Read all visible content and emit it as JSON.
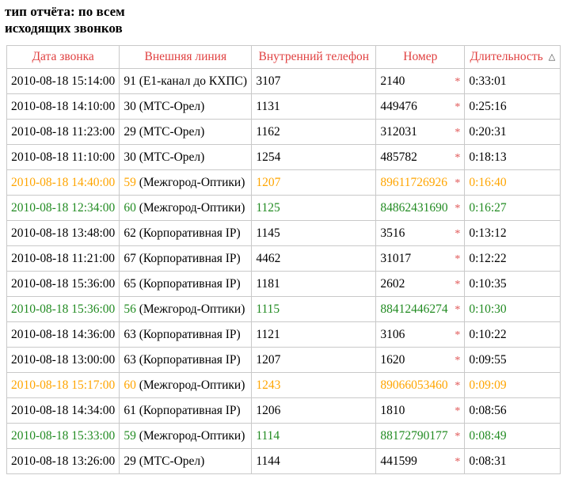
{
  "page": {
    "title": "тип отчёта: по всем\nисходящих звонков"
  },
  "colors": {
    "header_red": "#e04040",
    "star_red": "#e05555",
    "orange": "#ffa500",
    "green": "#228b22",
    "border": "#c9c9c9"
  },
  "table": {
    "columns": [
      {
        "label": "Дата звонка"
      },
      {
        "label": "Внешняя линия"
      },
      {
        "label": "Внутренний телефон"
      },
      {
        "label": "Номер"
      },
      {
        "label": "Длительность",
        "sort_indicator": "△"
      }
    ],
    "rows": [
      {
        "color": "black",
        "date": "2010-08-18 15:14:00",
        "line_no": "91",
        "line_name": "(E1-канал до КХПС)",
        "internal": "3107",
        "number": "2140",
        "flag": "*",
        "duration": "0:33:01"
      },
      {
        "color": "black",
        "date": "2010-08-18 14:10:00",
        "line_no": "30",
        "line_name": "(МТС-Орел)",
        "internal": "1131",
        "number": "449476",
        "flag": "*",
        "duration": "0:25:16"
      },
      {
        "color": "black",
        "date": "2010-08-18 11:23:00",
        "line_no": "29",
        "line_name": "(МТС-Орел)",
        "internal": "1162",
        "number": "312031",
        "flag": "*",
        "duration": "0:20:31"
      },
      {
        "color": "black",
        "date": "2010-08-18 11:10:00",
        "line_no": "30",
        "line_name": "(МТС-Орел)",
        "internal": "1254",
        "number": "485782",
        "flag": "*",
        "duration": "0:18:13"
      },
      {
        "color": "orange",
        "date": "2010-08-18 14:40:00",
        "line_no": "59",
        "line_name": "(Межгород-Оптики)",
        "internal": "1207",
        "number": "89611726926",
        "flag": "*",
        "duration": "0:16:40"
      },
      {
        "color": "green",
        "date": "2010-08-18 12:34:00",
        "line_no": "60",
        "line_name": "(Межгород-Оптики)",
        "internal": "1125",
        "number": "84862431690",
        "flag": "*",
        "duration": "0:16:27"
      },
      {
        "color": "black",
        "date": "2010-08-18 13:48:00",
        "line_no": "62",
        "line_name": "(Корпоративная IP)",
        "internal": "1145",
        "number": "3516",
        "flag": "*",
        "duration": "0:13:12"
      },
      {
        "color": "black",
        "date": "2010-08-18 11:21:00",
        "line_no": "67",
        "line_name": "(Корпоративная IP)",
        "internal": "4462",
        "number": "31017",
        "flag": "*",
        "duration": "0:12:22"
      },
      {
        "color": "black",
        "date": "2010-08-18 15:36:00",
        "line_no": "65",
        "line_name": "(Корпоративная IP)",
        "internal": "1181",
        "number": "2602",
        "flag": "*",
        "duration": "0:10:35"
      },
      {
        "color": "green",
        "date": "2010-08-18 15:36:00",
        "line_no": "56",
        "line_name": "(Межгород-Оптики)",
        "internal": "1115",
        "number": "88412446274",
        "flag": "*",
        "duration": "0:10:30"
      },
      {
        "color": "black",
        "date": "2010-08-18 14:36:00",
        "line_no": "63",
        "line_name": "(Корпоративная IP)",
        "internal": "1121",
        "number": "3106",
        "flag": "*",
        "duration": "0:10:22"
      },
      {
        "color": "black",
        "date": "2010-08-18 13:00:00",
        "line_no": "63",
        "line_name": "(Корпоративная IP)",
        "internal": "1207",
        "number": "1620",
        "flag": "*",
        "duration": "0:09:55"
      },
      {
        "color": "orange",
        "date": "2010-08-18 15:17:00",
        "line_no": "60",
        "line_name": "(Межгород-Оптики)",
        "internal": "1243",
        "number": "89066053460",
        "flag": "*",
        "duration": "0:09:09"
      },
      {
        "color": "black",
        "date": "2010-08-18 14:34:00",
        "line_no": "61",
        "line_name": "(Корпоративная IP)",
        "internal": "1206",
        "number": "1810",
        "flag": "*",
        "duration": "0:08:56"
      },
      {
        "color": "green",
        "date": "2010-08-18 15:33:00",
        "line_no": "59",
        "line_name": "(Межгород-Оптики)",
        "internal": "1114",
        "number": "88172790177",
        "flag": "*",
        "duration": "0:08:49"
      },
      {
        "color": "black",
        "date": "2010-08-18 13:26:00",
        "line_no": "29",
        "line_name": "(МТС-Орел)",
        "internal": "1144",
        "number": "441599",
        "flag": "*",
        "duration": "0:08:31"
      }
    ]
  }
}
